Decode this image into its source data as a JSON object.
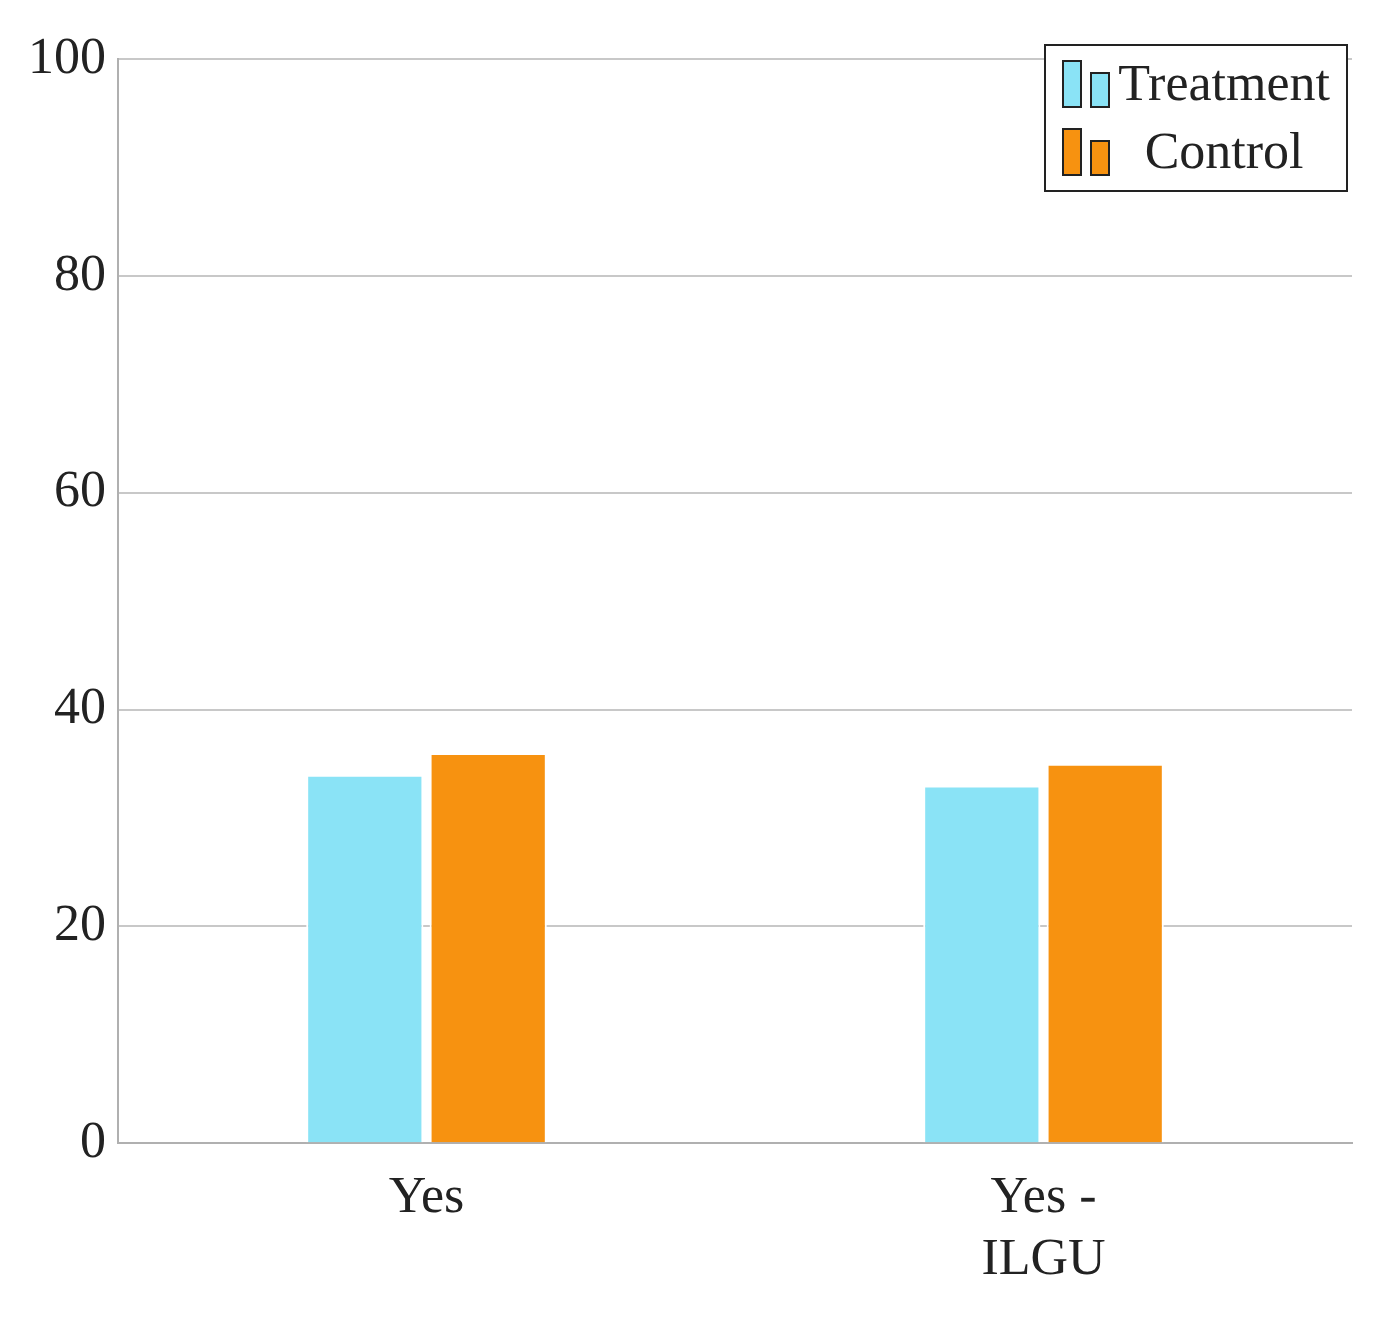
{
  "chart_data": {
    "type": "bar",
    "categories": [
      "Yes",
      "Yes - ILGU"
    ],
    "series": [
      {
        "name": "Treatment",
        "color": "#8ae3f6",
        "values": [
          34,
          33
        ]
      },
      {
        "name": "Control",
        "color": "#f79210",
        "values": [
          36,
          35
        ]
      }
    ],
    "ylim": [
      0,
      100
    ],
    "yticks": [
      0,
      20,
      40,
      60,
      80,
      100
    ],
    "grid": "y",
    "legend": "top right"
  }
}
